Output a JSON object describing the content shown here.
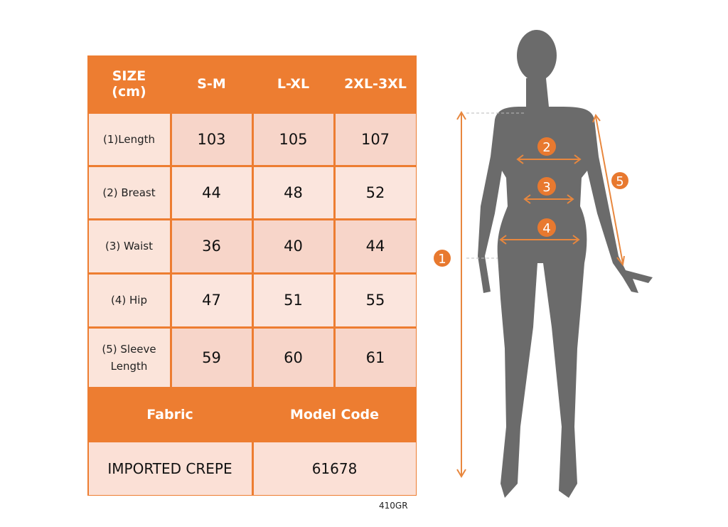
{
  "table": {
    "header": [
      "SIZE\n(cm)",
      "S-M",
      "L-XL",
      "2XL-3XL"
    ],
    "rows": [
      {
        "label": "(1)Length",
        "values": [
          "103",
          "105",
          "107"
        ]
      },
      {
        "label": "(2) Breast",
        "values": [
          "44",
          "48",
          "52"
        ]
      },
      {
        "label": "(3) Waist",
        "values": [
          "36",
          "40",
          "44"
        ]
      },
      {
        "label": "(4) Hip",
        "values": [
          "47",
          "51",
          "55"
        ]
      },
      {
        "label": "(5) Sleeve Length",
        "values": [
          "59",
          "60",
          "61"
        ]
      }
    ],
    "fabric_label": "Fabric",
    "model_code_label": "Model Code",
    "fabric_value": "IMPORTED CREPE",
    "model_code_value": "61678"
  },
  "footer_code": "410GR",
  "figure": {
    "markers": [
      "1",
      "2",
      "3",
      "4",
      "5"
    ]
  },
  "colors": {
    "accent": "#ed7d31",
    "silhouette": "#6b6b6b"
  }
}
